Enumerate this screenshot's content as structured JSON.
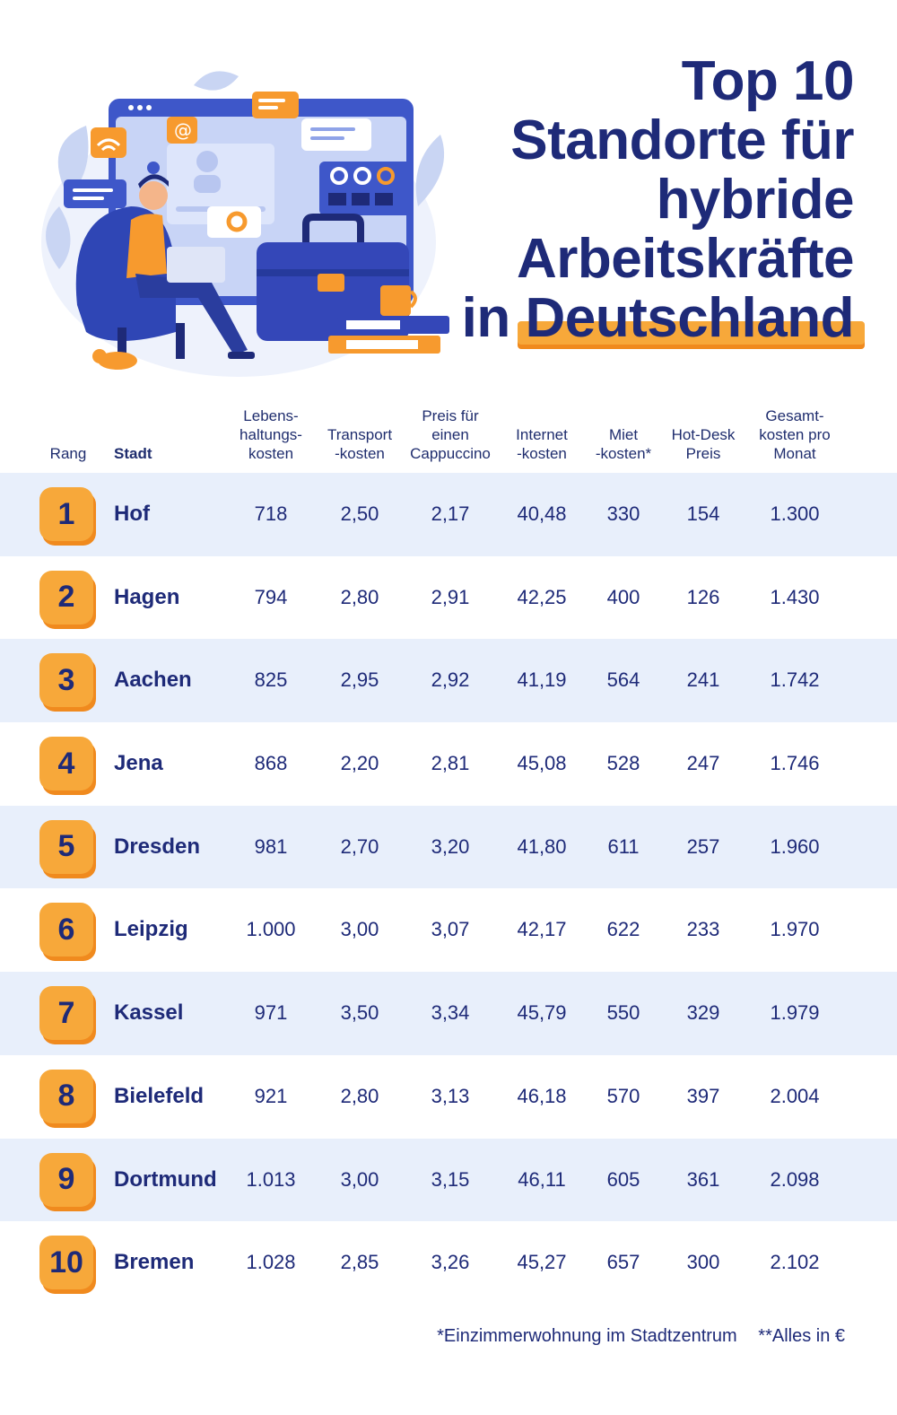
{
  "title": {
    "line1": "Top 10",
    "line2": "Standorte für",
    "line3": "hybride",
    "line4": "Arbeitskräfte",
    "line5_prefix": "in",
    "line5_highlight": "Deutschland"
  },
  "table": {
    "headers": {
      "rang": "Rang",
      "stadt": "Stadt",
      "lebenshaltung": [
        "Lebens-",
        "haltungs-",
        "kosten"
      ],
      "transport": [
        "Transport",
        "-kosten"
      ],
      "cappuccino": [
        "Preis für",
        "einen",
        "Cappuccino"
      ],
      "internet": [
        "Internet",
        "-kosten"
      ],
      "miete": [
        "Miet",
        "-kosten*"
      ],
      "hotdesk": [
        "Hot-Desk",
        "Preis"
      ],
      "gesamt": [
        "Gesamt-",
        "kosten pro",
        "Monat"
      ]
    },
    "rows": [
      {
        "rang": "1",
        "stadt": "Hof",
        "lebenshaltung": "718",
        "transport": "2,50",
        "cappuccino": "2,17",
        "internet": "40,48",
        "miete": "330",
        "hotdesk": "154",
        "gesamt": "1.300"
      },
      {
        "rang": "2",
        "stadt": "Hagen",
        "lebenshaltung": "794",
        "transport": "2,80",
        "cappuccino": "2,91",
        "internet": "42,25",
        "miete": "400",
        "hotdesk": "126",
        "gesamt": "1.430"
      },
      {
        "rang": "3",
        "stadt": "Aachen",
        "lebenshaltung": "825",
        "transport": "2,95",
        "cappuccino": "2,92",
        "internet": "41,19",
        "miete": "564",
        "hotdesk": "241",
        "gesamt": "1.742"
      },
      {
        "rang": "4",
        "stadt": "Jena",
        "lebenshaltung": "868",
        "transport": "2,20",
        "cappuccino": "2,81",
        "internet": "45,08",
        "miete": "528",
        "hotdesk": "247",
        "gesamt": "1.746"
      },
      {
        "rang": "5",
        "stadt": "Dresden",
        "lebenshaltung": "981",
        "transport": "2,70",
        "cappuccino": "3,20",
        "internet": "41,80",
        "miete": "611",
        "hotdesk": "257",
        "gesamt": "1.960"
      },
      {
        "rang": "6",
        "stadt": "Leipzig",
        "lebenshaltung": "1.000",
        "transport": "3,00",
        "cappuccino": "3,07",
        "internet": "42,17",
        "miete": "622",
        "hotdesk": "233",
        "gesamt": "1.970"
      },
      {
        "rang": "7",
        "stadt": "Kassel",
        "lebenshaltung": "971",
        "transport": "3,50",
        "cappuccino": "3,34",
        "internet": "45,79",
        "miete": "550",
        "hotdesk": "329",
        "gesamt": "1.979"
      },
      {
        "rang": "8",
        "stadt": "Bielefeld",
        "lebenshaltung": "921",
        "transport": "2,80",
        "cappuccino": "3,13",
        "internet": "46,18",
        "miete": "570",
        "hotdesk": "397",
        "gesamt": "2.004"
      },
      {
        "rang": "9",
        "stadt": "Dortmund",
        "lebenshaltung": "1.013",
        "transport": "3,00",
        "cappuccino": "3,15",
        "internet": "46,11",
        "miete": "605",
        "hotdesk": "361",
        "gesamt": "2.098"
      },
      {
        "rang": "10",
        "stadt": "Bremen",
        "lebenshaltung": "1.028",
        "transport": "2,85",
        "cappuccino": "3,26",
        "internet": "45,27",
        "miete": "657",
        "hotdesk": "300",
        "gesamt": "2.102"
      }
    ]
  },
  "footnotes": {
    "note1": "*Einzimmerwohnung im Stadtzentrum",
    "note2": "**Alles in €"
  },
  "colors": {
    "navy": "#1e2a78",
    "orange": "#f7a83a",
    "orange_shadow": "#f08a1e",
    "row_shade": "#e8effb"
  }
}
